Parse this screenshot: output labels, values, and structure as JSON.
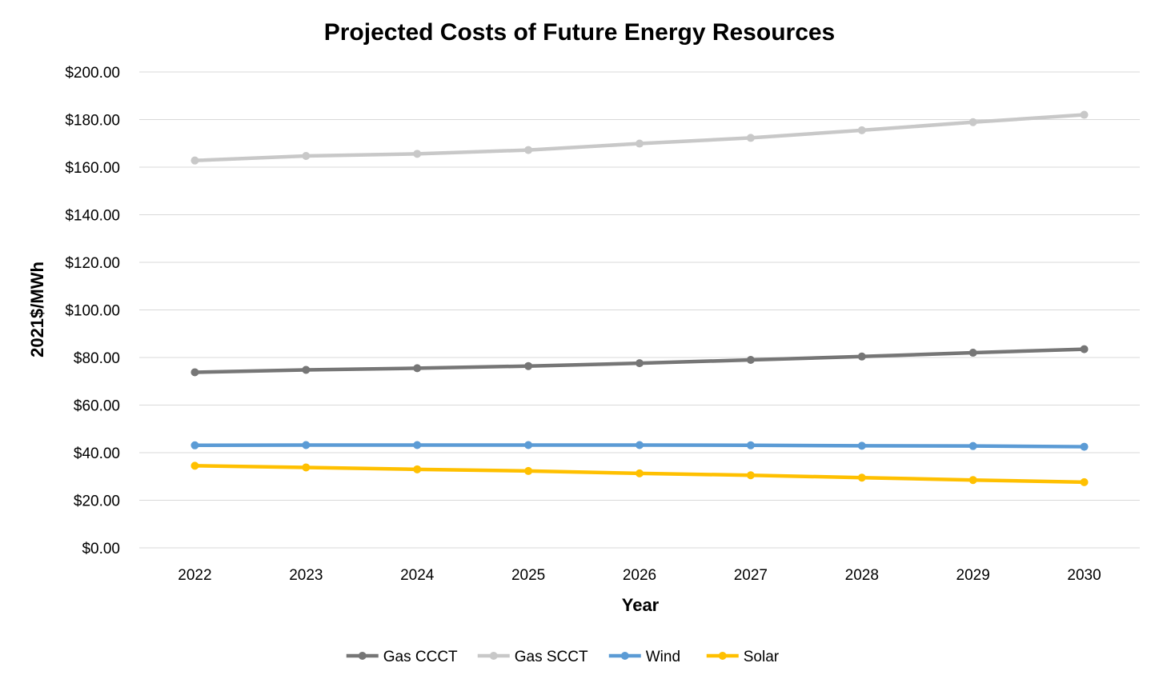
{
  "chart_data": {
    "type": "line",
    "title": "Projected Costs of Future Energy Resources",
    "xlabel": "Year",
    "ylabel": "2021$/MWh",
    "categories": [
      "2022",
      "2023",
      "2024",
      "2025",
      "2026",
      "2027",
      "2028",
      "2029",
      "2030"
    ],
    "ylim": [
      0,
      200
    ],
    "y_ticks": [
      "$0.00",
      "$20.00",
      "$40.00",
      "$60.00",
      "$80.00",
      "$100.00",
      "$120.00",
      "$140.00",
      "$160.00",
      "$180.00",
      "$200.00"
    ],
    "grid": true,
    "legend_position": "bottom",
    "series": [
      {
        "name": "Gas CCCT",
        "color": "#767676",
        "values": [
          73.8,
          74.8,
          75.5,
          76.4,
          77.6,
          79.0,
          80.4,
          82.0,
          83.5
        ]
      },
      {
        "name": "Gas SCCT",
        "color": "#c8c8c8",
        "values": [
          162.8,
          164.7,
          165.6,
          167.2,
          169.9,
          172.3,
          175.5,
          178.9,
          182.0
        ]
      },
      {
        "name": "Wind",
        "color": "#5b9bd5",
        "values": [
          43.1,
          43.2,
          43.2,
          43.2,
          43.2,
          43.1,
          42.9,
          42.8,
          42.5
        ]
      },
      {
        "name": "Solar",
        "color": "#ffc000",
        "values": [
          34.5,
          33.8,
          33.0,
          32.3,
          31.3,
          30.5,
          29.5,
          28.5,
          27.6
        ]
      }
    ]
  }
}
